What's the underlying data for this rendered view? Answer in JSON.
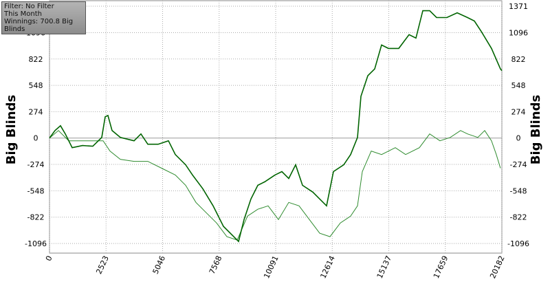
{
  "chart_data": {
    "type": "line",
    "info": [
      "Filter: No Filter",
      "This Month",
      "Winnings: 700.8 Big Blinds"
    ],
    "y_label": "Big Blinds",
    "xlim": [
      0,
      20182
    ],
    "ylim": [
      -1196,
      1371
    ],
    "xticks": [
      0,
      2523,
      5046,
      7568,
      10091,
      12614,
      15137,
      17659,
      20182
    ],
    "yticks": [
      -1096,
      -822,
      -548,
      -274,
      0,
      274,
      548,
      822,
      1096,
      1371
    ],
    "grid": true,
    "series": [
      {
        "color": "#006400",
        "x": [
          0,
          245,
          490,
          705,
          1012,
          1472,
          1932,
          2331,
          2484,
          2607,
          2791,
          3159,
          3772,
          4079,
          4386,
          4846,
          5306,
          5613,
          6072,
          6379,
          6840,
          7300,
          7760,
          8220,
          8434,
          8679,
          8986,
          9293,
          9600,
          10060,
          10367,
          10674,
          10980,
          11287,
          11747,
          12054,
          12360,
          12667,
          13127,
          13434,
          13741,
          13894,
          14200,
          14507,
          14814,
          15120,
          15580,
          16040,
          16347,
          16654,
          16960,
          17267,
          17727,
          18187,
          18647,
          18954,
          19260,
          19720,
          20118,
          20182
        ],
        "values": [
          0,
          78,
          128,
          43,
          -100,
          -78,
          -85,
          7,
          221,
          235,
          78,
          7,
          -28,
          43,
          -64,
          -64,
          -28,
          -171,
          -278,
          -384,
          -527,
          -705,
          -918,
          -1025,
          -1075,
          -847,
          -633,
          -491,
          -455,
          -384,
          -349,
          -420,
          -278,
          -491,
          -562,
          -633,
          -705,
          -349,
          -278,
          -171,
          7,
          434,
          648,
          719,
          968,
          932,
          932,
          1075,
          1039,
          1324,
          1324,
          1253,
          1253,
          1302,
          1253,
          1217,
          1110,
          932,
          719,
          700.8
        ]
      },
      {
        "color": "#2e8b2e",
        "x": [
          0,
          399,
          859,
          1779,
          2392,
          2699,
          3159,
          3772,
          4386,
          4999,
          5613,
          6072,
          6533,
          6993,
          7453,
          7913,
          8373,
          8833,
          9293,
          9753,
          10213,
          10674,
          11134,
          11594,
          12054,
          12514,
          12974,
          13434,
          13741,
          13955,
          14354,
          14814,
          15427,
          15887,
          16500,
          16960,
          17420,
          17880,
          18340,
          18647,
          19107,
          19414,
          19720,
          19935,
          20118
        ],
        "values": [
          0,
          78,
          -28,
          -28,
          -28,
          -135,
          -221,
          -242,
          -242,
          -313,
          -384,
          -491,
          -669,
          -776,
          -883,
          -1025,
          -1060,
          -811,
          -740,
          -705,
          -847,
          -669,
          -705,
          -847,
          -989,
          -1025,
          -883,
          -811,
          -705,
          -349,
          -135,
          -171,
          -100,
          -171,
          -100,
          43,
          -28,
          7,
          78,
          43,
          7,
          78,
          -28,
          -171,
          -313
        ]
      }
    ]
  }
}
